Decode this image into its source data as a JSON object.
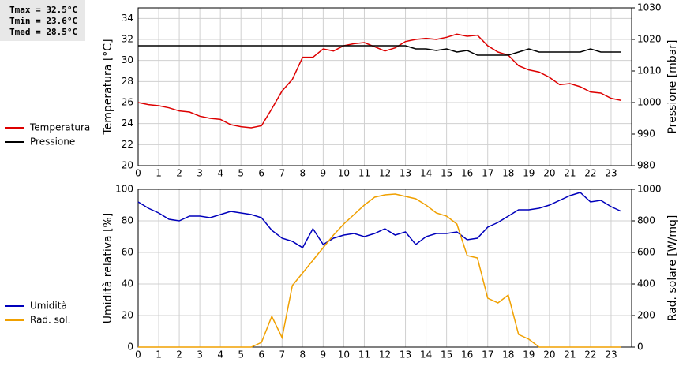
{
  "chart_data": [
    {
      "type": "line",
      "annotations": [
        "Tmax = 32.5°C",
        "Tmin = 23.6°C",
        "Tmed = 28.5°C"
      ],
      "ylabel": "Temperatura [°C]",
      "y2label": "Pressione [mbar]",
      "x": [
        0,
        0.5,
        1,
        1.5,
        2,
        2.5,
        3,
        3.5,
        4,
        4.5,
        5,
        5.5,
        6,
        6.5,
        7,
        7.5,
        8,
        8.5,
        9,
        9.5,
        10,
        10.5,
        11,
        11.5,
        12,
        12.5,
        13,
        13.5,
        14,
        14.5,
        15,
        15.5,
        16,
        16.5,
        17,
        17.5,
        18,
        18.5,
        19,
        19.5,
        20,
        20.5,
        21,
        21.5,
        22,
        22.5,
        23,
        23.5
      ],
      "xlim": [
        0,
        24
      ],
      "xticks": [
        0,
        1,
        2,
        3,
        4,
        5,
        6,
        7,
        8,
        9,
        10,
        11,
        12,
        13,
        14,
        15,
        16,
        17,
        18,
        19,
        20,
        21,
        22,
        23
      ],
      "ylim": [
        20,
        35
      ],
      "yticks": [
        20,
        22,
        24,
        26,
        28,
        30,
        32,
        34
      ],
      "y2lim": [
        980,
        1030
      ],
      "y2ticks": [
        980,
        990,
        1000,
        1010,
        1020,
        1030
      ],
      "grid": true,
      "legend": "left",
      "series": [
        {
          "name": "Temperatura",
          "color": "#dd0000",
          "values": [
            26.0,
            25.8,
            25.7,
            25.5,
            25.2,
            25.1,
            24.7,
            24.5,
            24.4,
            23.9,
            23.7,
            23.6,
            23.8,
            25.4,
            27.1,
            28.2,
            30.3,
            30.3,
            31.1,
            30.9,
            31.4,
            31.6,
            31.7,
            31.3,
            30.9,
            31.2,
            31.8,
            32.0,
            32.1,
            32.0,
            32.2,
            32.5,
            32.3,
            32.4,
            31.4,
            30.8,
            30.5,
            29.5,
            29.1,
            28.9,
            28.4,
            27.7,
            27.8,
            27.5,
            27.0,
            26.9,
            26.4,
            26.2
          ]
        },
        {
          "name": "Pressione",
          "color": "#000000",
          "axis": "y2",
          "values": [
            1018,
            1018,
            1018,
            1018,
            1018,
            1018,
            1018,
            1018,
            1018,
            1018,
            1018,
            1018,
            1018,
            1018,
            1018,
            1018,
            1018,
            1018,
            1018,
            1018,
            1018,
            1018,
            1018,
            1018,
            1018,
            1018,
            1018,
            1017,
            1017,
            1016.5,
            1017,
            1016,
            1016.5,
            1015,
            1015,
            1015,
            1015,
            1016,
            1017,
            1016,
            1016,
            1016,
            1016,
            1016,
            1017,
            1016,
            1016,
            1016
          ]
        }
      ]
    },
    {
      "type": "line",
      "ylabel": "Umidità relativa [%]",
      "y2label": "Rad. solare [W/mq]",
      "x": [
        0,
        0.5,
        1,
        1.5,
        2,
        2.5,
        3,
        3.5,
        4,
        4.5,
        5,
        5.5,
        6,
        6.5,
        7,
        7.5,
        8,
        8.5,
        9,
        9.5,
        10,
        10.5,
        11,
        11.5,
        12,
        12.5,
        13,
        13.5,
        14,
        14.5,
        15,
        15.5,
        16,
        16.5,
        17,
        17.5,
        18,
        18.5,
        19,
        19.5,
        20,
        20.5,
        21,
        21.5,
        22,
        22.5,
        23,
        23.5
      ],
      "xlim": [
        0,
        24
      ],
      "xticks": [
        0,
        1,
        2,
        3,
        4,
        5,
        6,
        7,
        8,
        9,
        10,
        11,
        12,
        13,
        14,
        15,
        16,
        17,
        18,
        19,
        20,
        21,
        22,
        23
      ],
      "ylim": [
        0,
        100
      ],
      "yticks": [
        0,
        20,
        40,
        60,
        80,
        100
      ],
      "y2lim": [
        0,
        1000
      ],
      "y2ticks": [
        0,
        200,
        400,
        600,
        800,
        1000
      ],
      "grid": true,
      "legend": "left",
      "series": [
        {
          "name": "Umidità",
          "color": "#0000bb",
          "values": [
            92,
            88,
            85,
            81,
            80,
            83,
            83,
            82,
            84,
            86,
            85,
            84,
            82,
            74,
            69,
            67,
            63,
            75,
            65,
            69,
            71,
            72,
            70,
            72,
            75,
            71,
            73,
            65,
            70,
            72,
            72,
            73,
            68,
            69,
            76,
            79,
            83,
            87,
            87,
            88,
            90,
            93,
            96,
            98,
            92,
            93,
            89,
            86
          ]
        },
        {
          "name": "Rad. sol.",
          "color": "#f0a000",
          "axis": "y2",
          "values": [
            0,
            0,
            0,
            0,
            0,
            0,
            0,
            0,
            0,
            0,
            0,
            0,
            30,
            195,
            60,
            390,
            470,
            550,
            630,
            710,
            780,
            840,
            900,
            950,
            965,
            970,
            955,
            940,
            900,
            850,
            830,
            780,
            580,
            565,
            310,
            280,
            330,
            80,
            50,
            0,
            0,
            0,
            0,
            0,
            0,
            0,
            0,
            0
          ]
        }
      ]
    }
  ]
}
